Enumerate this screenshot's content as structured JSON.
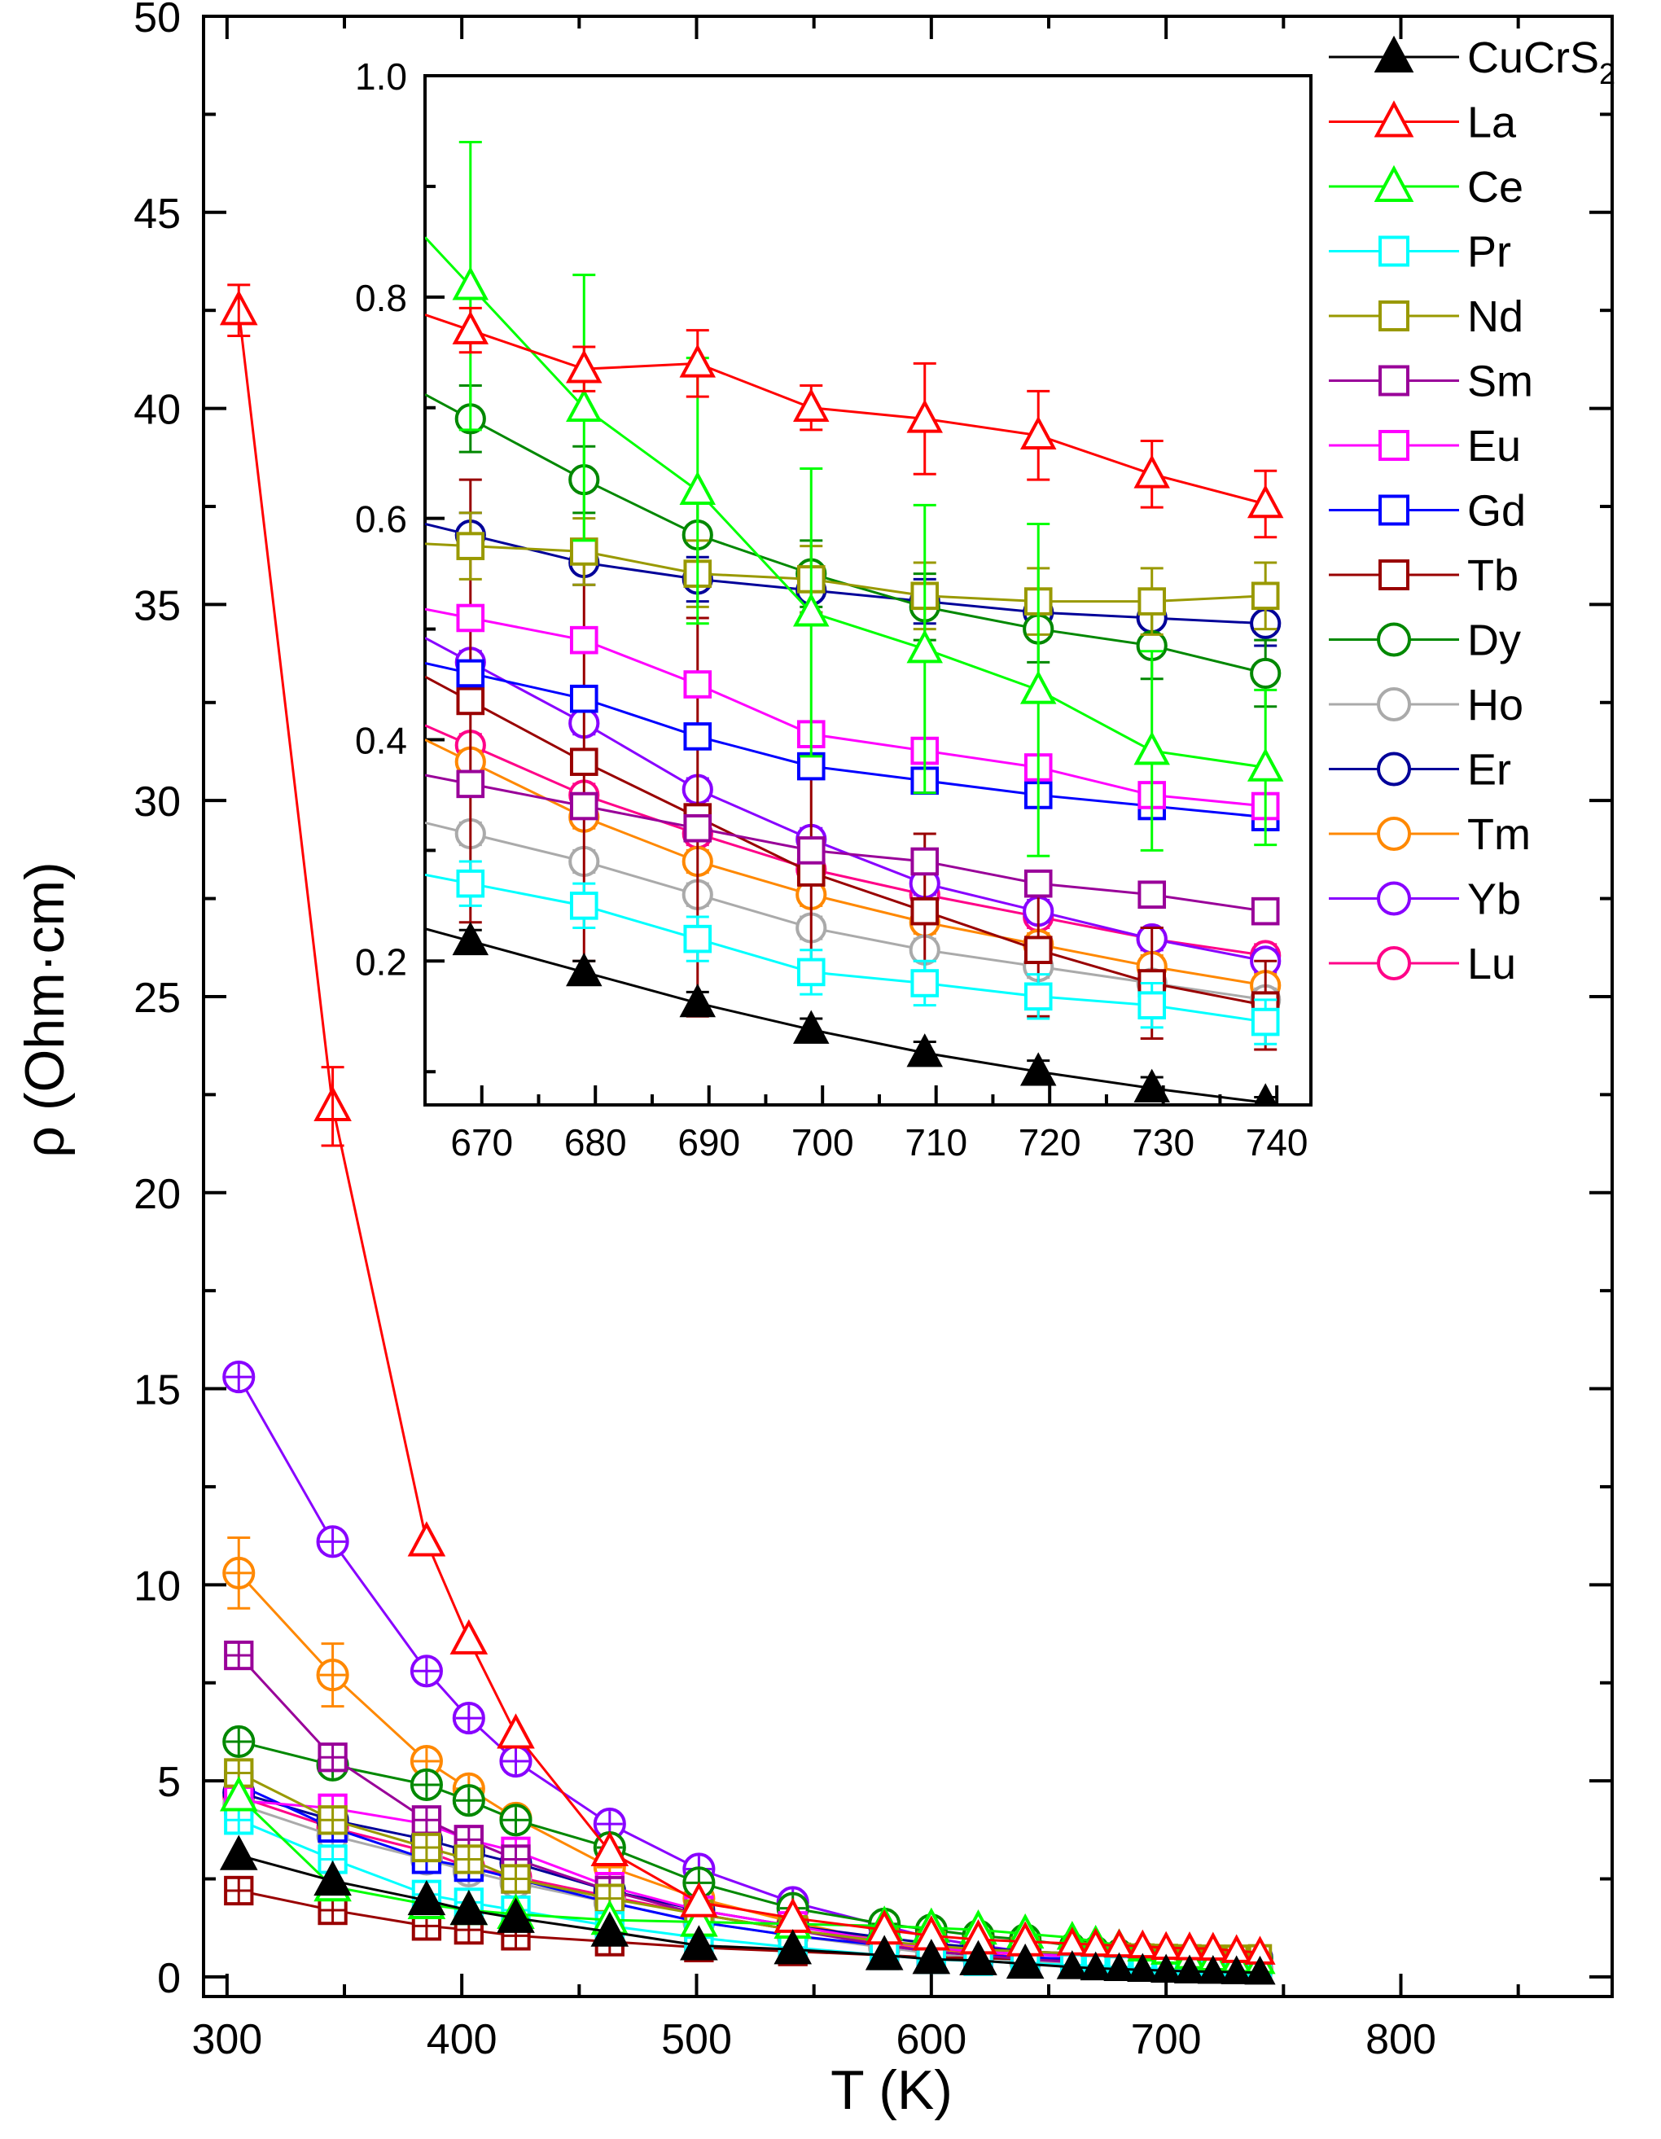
{
  "chart_data": [
    {
      "panel": "main",
      "type": "line",
      "xlabel": "T (K)",
      "ylabel": "ρ (Ohm·cm)",
      "xlim": [
        290,
        890
      ],
      "ylim": [
        -0.5,
        50
      ],
      "xticks": [
        300,
        400,
        500,
        600,
        700,
        800
      ],
      "yticks": [
        0,
        5,
        10,
        15,
        20,
        25,
        30,
        35,
        40,
        45,
        50
      ],
      "grid": false,
      "legend_position": "top-right",
      "x": [
        305,
        345,
        385,
        403,
        423,
        463,
        501,
        541,
        580,
        600,
        620,
        640,
        660,
        670,
        680,
        690,
        700,
        710,
        720,
        730,
        740
      ],
      "series": [
        {
          "name": "CuCrS",
          "name_sub": "2",
          "color": "#000000",
          "marker": "triangle",
          "filled": true,
          "values": [
            3.1,
            2.45,
            1.95,
            1.7,
            1.5,
            1.15,
            0.8,
            0.7,
            0.55,
            0.45,
            0.42,
            0.33,
            0.25,
            0.22,
            0.2,
            0.18,
            0.16,
            0.14,
            0.13,
            0.12,
            0.11
          ]
        },
        {
          "name": "La",
          "color": "#ff0000",
          "marker": "triangle",
          "filled": false,
          "values": [
            42.5,
            22.2,
            11.1,
            8.6,
            6.2,
            3.2,
            1.9,
            1.5,
            1.2,
            1.05,
            0.95,
            0.9,
            0.85,
            0.82,
            0.8,
            0.78,
            0.74,
            0.73,
            0.72,
            0.66,
            0.62
          ]
        },
        {
          "name": "Ce",
          "color": "#00ff00",
          "marker": "triangle",
          "filled": false,
          "values": [
            4.6,
            2.3,
            1.85,
            1.7,
            1.6,
            1.45,
            1.4,
            1.35,
            1.3,
            1.25,
            1.2,
            1.1,
            1.0,
            0.9,
            0.81,
            0.7,
            0.62,
            0.5,
            0.45,
            0.4,
            0.38
          ]
        },
        {
          "name": "Pr",
          "color": "#00ffff",
          "marker": "square",
          "filled": false,
          "values": [
            4.0,
            3.0,
            2.1,
            1.9,
            1.7,
            1.3,
            1.0,
            0.75,
            0.55,
            0.45,
            0.4,
            0.35,
            0.3,
            0.28,
            0.25,
            0.22,
            0.2,
            0.18,
            0.17,
            0.16,
            0.14
          ]
        },
        {
          "name": "Nd",
          "color": "#999900",
          "marker": "square",
          "filled": false,
          "values": [
            5.2,
            4.0,
            3.3,
            3.0,
            2.5,
            2.0,
            1.6,
            1.2,
            0.9,
            0.8,
            0.7,
            0.65,
            0.6,
            0.58,
            0.57,
            0.55,
            0.54,
            0.53,
            0.52,
            0.52,
            0.53
          ]
        },
        {
          "name": "Sm",
          "color": "#990099",
          "marker": "square",
          "filled": false,
          "values": [
            8.2,
            5.6,
            4.0,
            3.5,
            3.0,
            2.2,
            1.6,
            1.2,
            0.8,
            0.65,
            0.55,
            0.45,
            0.38,
            0.36,
            0.34,
            0.32,
            0.3,
            0.28,
            0.27,
            0.26,
            0.25
          ]
        },
        {
          "name": "Eu",
          "color": "#ff00ff",
          "marker": "square",
          "filled": false,
          "values": [
            4.5,
            4.3,
            3.9,
            3.5,
            3.2,
            2.3,
            1.7,
            1.3,
            0.9,
            0.75,
            0.65,
            0.58,
            0.52,
            0.51,
            0.49,
            0.45,
            0.41,
            0.39,
            0.37,
            0.35,
            0.34
          ]
        },
        {
          "name": "Gd",
          "color": "#0000ff",
          "marker": "square",
          "filled": false,
          "values": [
            4.9,
            3.8,
            3.0,
            2.8,
            2.5,
            1.9,
            1.4,
            1.05,
            0.8,
            0.65,
            0.55,
            0.5,
            0.46,
            0.46,
            0.44,
            0.4,
            0.37,
            0.36,
            0.35,
            0.34,
            0.33
          ]
        },
        {
          "name": "Tb",
          "color": "#990000",
          "marker": "square",
          "filled": false,
          "values": [
            2.2,
            1.7,
            1.3,
            1.2,
            1.05,
            0.9,
            0.75,
            0.65,
            0.55,
            0.5,
            0.48,
            0.45,
            0.44,
            0.43,
            0.37,
            0.33,
            0.28,
            0.24,
            0.2,
            0.18,
            0.17
          ]
        },
        {
          "name": "Dy",
          "color": "#008800",
          "marker": "circle",
          "filled": false,
          "values": [
            6.0,
            5.4,
            4.9,
            4.5,
            4.0,
            3.3,
            2.4,
            1.75,
            1.35,
            1.2,
            1.05,
            0.95,
            0.8,
            0.72,
            0.65,
            0.59,
            0.55,
            0.52,
            0.5,
            0.48,
            0.46
          ]
        },
        {
          "name": "Ho",
          "color": "#aaaaaa",
          "marker": "circle",
          "filled": false,
          "values": [
            4.4,
            3.6,
            3.0,
            2.7,
            2.4,
            1.9,
            1.4,
            1.05,
            0.75,
            0.6,
            0.5,
            0.4,
            0.35,
            0.32,
            0.29,
            0.26,
            0.23,
            0.21,
            0.2,
            0.18,
            0.17
          ]
        },
        {
          "name": "Er",
          "color": "#000099",
          "marker": "circle",
          "filled": false,
          "values": [
            4.7,
            4.0,
            3.5,
            3.2,
            2.9,
            2.2,
            1.7,
            1.3,
            1.0,
            0.85,
            0.75,
            0.65,
            0.6,
            0.59,
            0.57,
            0.56,
            0.54,
            0.53,
            0.52,
            0.51,
            0.51
          ]
        },
        {
          "name": "Tm",
          "color": "#ff8800",
          "marker": "circle",
          "filled": false,
          "values": [
            10.3,
            7.7,
            5.5,
            4.8,
            4.05,
            2.8,
            2.0,
            1.4,
            0.9,
            0.7,
            0.55,
            0.45,
            0.4,
            0.38,
            0.33,
            0.29,
            0.26,
            0.24,
            0.22,
            0.2,
            0.18
          ]
        },
        {
          "name": "Yb",
          "color": "#8800ff",
          "marker": "circle",
          "filled": false,
          "values": [
            15.3,
            11.1,
            7.8,
            6.6,
            5.5,
            3.9,
            2.75,
            1.9,
            1.3,
            1.0,
            0.8,
            0.65,
            0.55,
            0.47,
            0.42,
            0.36,
            0.31,
            0.27,
            0.25,
            0.22,
            0.2
          ]
        },
        {
          "name": "Lu",
          "color": "#ff0088",
          "marker": "circle",
          "filled": false,
          "values": [
            4.6,
            3.8,
            3.2,
            2.8,
            2.55,
            2.05,
            1.6,
            1.2,
            0.85,
            0.7,
            0.6,
            0.5,
            0.42,
            0.39,
            0.35,
            0.32,
            0.29,
            0.26,
            0.24,
            0.22,
            0.21
          ]
        }
      ]
    },
    {
      "panel": "inset",
      "type": "line",
      "xlim": [
        665,
        743
      ],
      "ylim": [
        0.07,
        1.0
      ],
      "xticks": [
        670,
        680,
        690,
        700,
        710,
        720,
        730,
        740
      ],
      "yticks": [
        0.2,
        0.4,
        0.6,
        0.8,
        1.0
      ],
      "ytick_labels": [
        "0.2",
        "0.4",
        "0.6",
        "0.8",
        "1.0"
      ],
      "grid": false,
      "x": [
        669,
        679,
        689,
        699,
        709,
        719,
        729,
        739
      ],
      "series": [
        {
          "name": "CuCrS2",
          "values": [
            0.218,
            0.19,
            0.162,
            0.138,
            0.117,
            0.1,
            0.085,
            0.072
          ],
          "err": [
            0.01,
            0.01,
            0.01,
            0.01,
            0.01,
            0.01,
            0.01,
            0.005
          ]
        },
        {
          "name": "La",
          "values": [
            0.77,
            0.735,
            0.74,
            0.7,
            0.69,
            0.675,
            0.64,
            0.613
          ],
          "err": [
            0.02,
            0.02,
            0.03,
            0.02,
            0.05,
            0.04,
            0.03,
            0.03
          ]
        },
        {
          "name": "Ce",
          "values": [
            0.81,
            0.7,
            0.625,
            0.515,
            0.482,
            0.445,
            0.39,
            0.375
          ],
          "err": [
            0.13,
            0.12,
            0.12,
            0.13,
            0.13,
            0.15,
            0.09,
            0.07
          ]
        },
        {
          "name": "Pr",
          "values": [
            0.27,
            0.25,
            0.22,
            0.19,
            0.18,
            0.168,
            0.16,
            0.145
          ],
          "err": [
            0.02,
            0.02,
            0.02,
            0.02,
            0.02,
            0.02,
            0.02,
            0.02
          ]
        },
        {
          "name": "Nd",
          "values": [
            0.575,
            0.57,
            0.55,
            0.545,
            0.53,
            0.525,
            0.525,
            0.53
          ],
          "err": [
            0.03,
            0.03,
            0.03,
            0.03,
            0.03,
            0.03,
            0.03,
            0.03
          ]
        },
        {
          "name": "Sm",
          "values": [
            0.36,
            0.34,
            0.32,
            0.3,
            0.29,
            0.27,
            0.26,
            0.245
          ],
          "err": [
            0.01,
            0.01,
            0.01,
            0.01,
            0.01,
            0.01,
            0.01,
            0.01
          ]
        },
        {
          "name": "Eu",
          "values": [
            0.51,
            0.49,
            0.45,
            0.405,
            0.39,
            0.375,
            0.35,
            0.34
          ],
          "err": [
            0.01,
            0.01,
            0.01,
            0.01,
            0.01,
            0.01,
            0.01,
            0.01
          ]
        },
        {
          "name": "Gd",
          "values": [
            0.46,
            0.437,
            0.403,
            0.376,
            0.363,
            0.35,
            0.34,
            0.33
          ],
          "err": [
            0.01,
            0.01,
            0.01,
            0.01,
            0.01,
            0.01,
            0.01,
            0.01
          ]
        },
        {
          "name": "Tb",
          "values": [
            0.435,
            0.38,
            0.33,
            0.28,
            0.245,
            0.21,
            0.18,
            0.16
          ],
          "err": [
            0.2,
            0.18,
            0.18,
            0.09,
            0.07,
            0.06,
            0.05,
            0.04
          ]
        },
        {
          "name": "Dy",
          "values": [
            0.69,
            0.635,
            0.585,
            0.55,
            0.52,
            0.5,
            0.485,
            0.46
          ],
          "err": [
            0.03,
            0.03,
            0.03,
            0.03,
            0.03,
            0.03,
            0.03,
            0.03
          ]
        },
        {
          "name": "Ho",
          "values": [
            0.315,
            0.29,
            0.26,
            0.23,
            0.21,
            0.195,
            0.18,
            0.165
          ],
          "err": [
            0.01,
            0.01,
            0.01,
            0.01,
            0.01,
            0.01,
            0.01,
            0.01
          ]
        },
        {
          "name": "Er",
          "values": [
            0.585,
            0.56,
            0.545,
            0.535,
            0.525,
            0.515,
            0.51,
            0.505
          ],
          "err": [
            0.02,
            0.02,
            0.02,
            0.02,
            0.02,
            0.02,
            0.02,
            0.02
          ]
        },
        {
          "name": "Tm",
          "values": [
            0.38,
            0.33,
            0.29,
            0.26,
            0.235,
            0.215,
            0.195,
            0.178
          ],
          "err": [
            0.01,
            0.01,
            0.01,
            0.01,
            0.01,
            0.01,
            0.01,
            0.01
          ]
        },
        {
          "name": "Yb",
          "values": [
            0.47,
            0.415,
            0.355,
            0.31,
            0.27,
            0.245,
            0.22,
            0.2
          ],
          "err": [
            0.01,
            0.01,
            0.01,
            0.01,
            0.01,
            0.01,
            0.01,
            0.01
          ]
        },
        {
          "name": "Lu",
          "values": [
            0.395,
            0.35,
            0.315,
            0.283,
            0.26,
            0.24,
            0.22,
            0.205
          ],
          "err": [
            0.01,
            0.01,
            0.01,
            0.01,
            0.01,
            0.01,
            0.01,
            0.01
          ]
        }
      ]
    }
  ]
}
